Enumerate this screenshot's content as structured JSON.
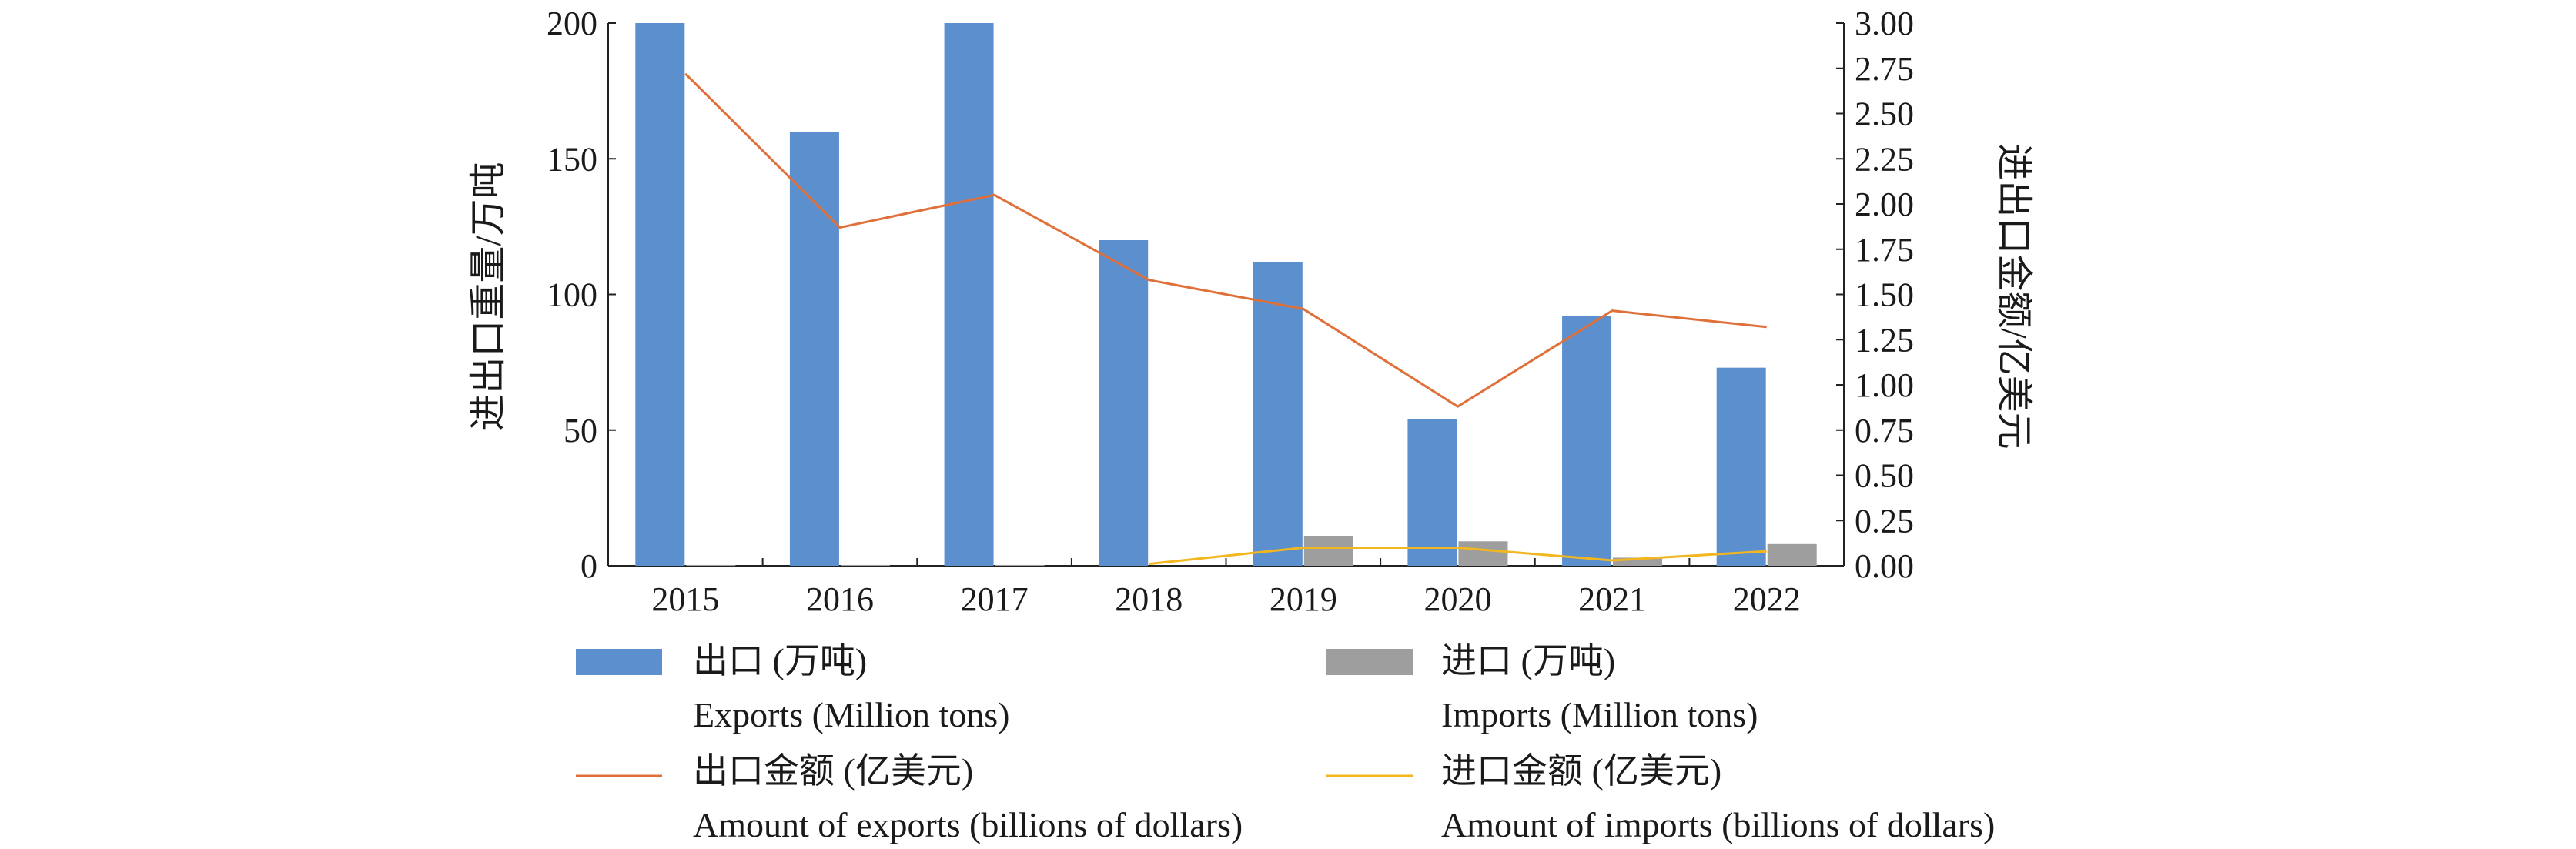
{
  "chart_data": {
    "type": "bar",
    "categories": [
      "2015",
      "2016",
      "2017",
      "2018",
      "2019",
      "2020",
      "2021",
      "2022"
    ],
    "y_left": {
      "label": "进出口重量/万吨",
      "lim": [
        0,
        200
      ],
      "ticks": [
        0,
        50,
        100,
        150,
        200
      ],
      "tick_labels": [
        "0",
        "50",
        "100",
        "150",
        "200"
      ]
    },
    "y_right": {
      "label": "进出口金额/亿美元",
      "lim": [
        0,
        3
      ],
      "ticks": [
        0,
        0.25,
        0.5,
        0.75,
        1,
        1.25,
        1.5,
        1.75,
        2,
        2.25,
        2.5,
        2.75,
        3
      ],
      "tick_labels": [
        "0.00",
        "0.25",
        "0.50",
        "0.75",
        "1.00",
        "1.25",
        "1.50",
        "1.75",
        "2.00",
        "2.25",
        "2.50",
        "2.75",
        "3.00"
      ]
    },
    "series": [
      {
        "name": "出口 (万吨)",
        "name_en": "Exports (Million tons)",
        "kind": "bar",
        "axis": "left",
        "color": "#5b8fce",
        "values": [
          200,
          160,
          200,
          120,
          112,
          54,
          92,
          73
        ]
      },
      {
        "name": "进口 (万吨)",
        "name_en": "Imports (Million tons)",
        "kind": "bar",
        "axis": "left",
        "color": "#9e9e9e",
        "values": [
          0.3,
          0.3,
          0.3,
          0,
          11,
          9,
          3,
          8
        ]
      },
      {
        "name": "出口金额 (亿美元)",
        "name_en": "Amount of exports (billions of dollars)",
        "kind": "line",
        "axis": "right",
        "color": "#e0703a",
        "values": [
          2.72,
          1.87,
          2.05,
          1.58,
          1.42,
          0.88,
          1.41,
          1.32
        ]
      },
      {
        "name": "进口金额 (亿美元)",
        "name_en": "Amount of imports (billions of dollars)",
        "kind": "line",
        "axis": "right",
        "color": "#f2b61e",
        "values": [
          null,
          null,
          null,
          0.01,
          0.1,
          0.1,
          0.03,
          0.08
        ]
      }
    ],
    "legend_position": "bottom",
    "grid": false
  }
}
